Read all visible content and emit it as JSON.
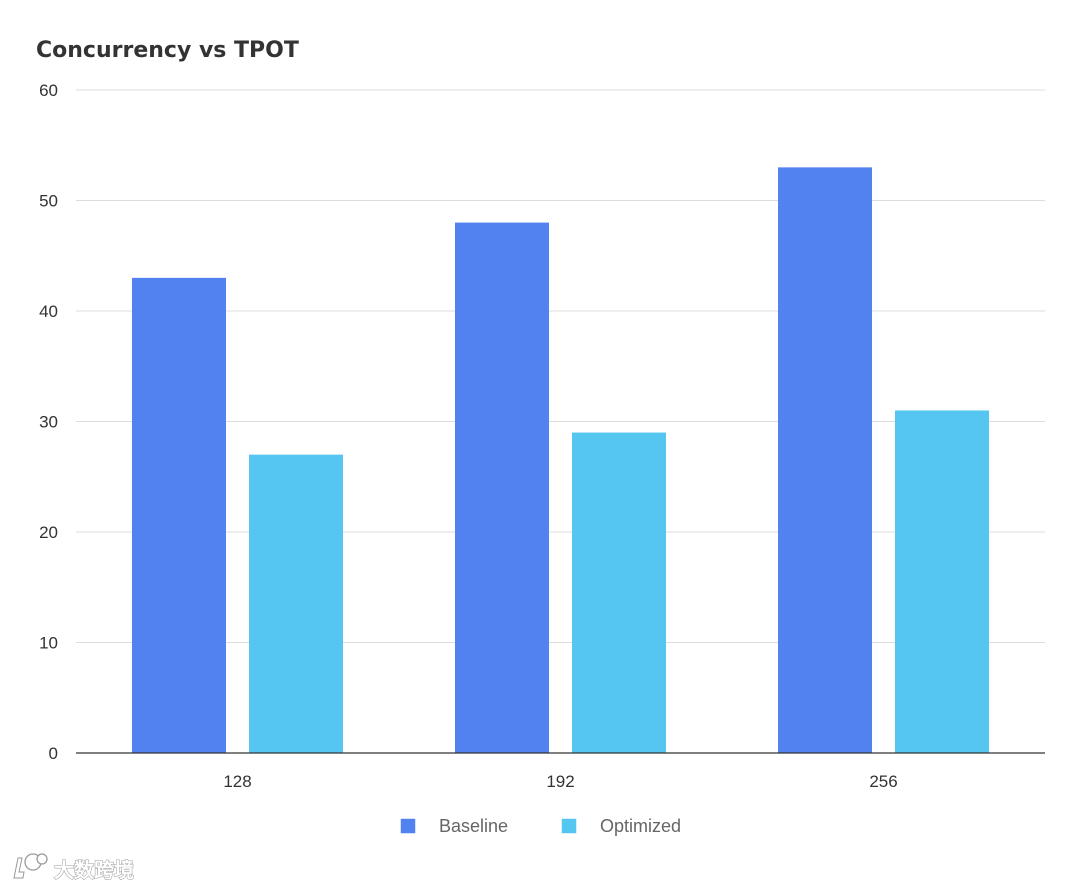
{
  "chart_data": {
    "type": "bar",
    "title": "Concurrency vs TPOT",
    "xlabel": "",
    "ylabel": "",
    "categories": [
      "128",
      "192",
      "256"
    ],
    "series": [
      {
        "name": "Baseline",
        "values": [
          43,
          48,
          53
        ],
        "color": "#5182F0"
      },
      {
        "name": "Optimized",
        "values": [
          27,
          29,
          31
        ],
        "color": "#55C6F0"
      }
    ],
    "ylim": [
      0,
      60
    ],
    "yticks": [
      "0",
      "10",
      "20",
      "30",
      "40",
      "50",
      "60"
    ],
    "grid": true,
    "legend_position": "bottom-center"
  },
  "watermark": {
    "icon": "logo-icon",
    "text": "大数跨境"
  }
}
